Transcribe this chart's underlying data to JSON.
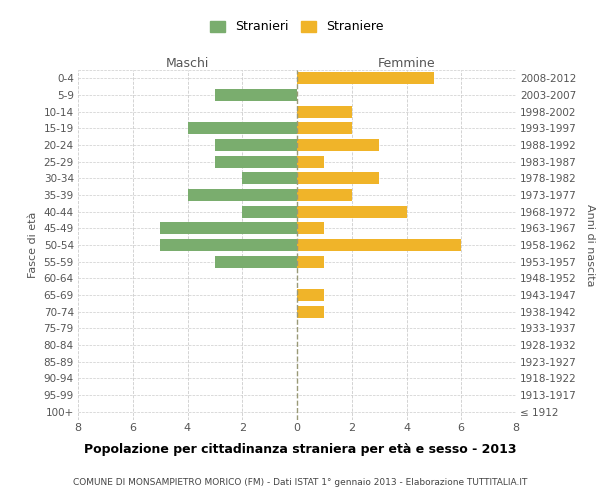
{
  "age_groups": [
    "100+",
    "95-99",
    "90-94",
    "85-89",
    "80-84",
    "75-79",
    "70-74",
    "65-69",
    "60-64",
    "55-59",
    "50-54",
    "45-49",
    "40-44",
    "35-39",
    "30-34",
    "25-29",
    "20-24",
    "15-19",
    "10-14",
    "5-9",
    "0-4"
  ],
  "birth_years": [
    "≤ 1912",
    "1913-1917",
    "1918-1922",
    "1923-1927",
    "1928-1932",
    "1933-1937",
    "1938-1942",
    "1943-1947",
    "1948-1952",
    "1953-1957",
    "1958-1962",
    "1963-1967",
    "1968-1972",
    "1973-1977",
    "1978-1982",
    "1983-1987",
    "1988-1992",
    "1993-1997",
    "1998-2002",
    "2003-2007",
    "2008-2012"
  ],
  "maschi": [
    0,
    0,
    0,
    0,
    0,
    0,
    0,
    0,
    0,
    3,
    5,
    5,
    2,
    4,
    2,
    3,
    3,
    4,
    0,
    3,
    0
  ],
  "femmine": [
    0,
    0,
    0,
    0,
    0,
    0,
    1,
    1,
    0,
    1,
    6,
    1,
    4,
    2,
    3,
    1,
    3,
    2,
    2,
    0,
    5
  ],
  "color_maschi": "#7aad6e",
  "color_femmine": "#f0b429",
  "title": "Popolazione per cittadinanza straniera per età e sesso - 2013",
  "subtitle": "COMUNE DI MONSAMPIETRO MORICO (FM) - Dati ISTAT 1° gennaio 2013 - Elaborazione TUTTITALIA.IT",
  "xlabel_left": "Maschi",
  "xlabel_right": "Femmine",
  "ylabel_left": "Fasce di età",
  "ylabel_right": "Anni di nascita",
  "legend_maschi": "Stranieri",
  "legend_femmine": "Straniere",
  "xlim": 8,
  "background_color": "#ffffff",
  "grid_color": "#cccccc",
  "dashed_line_color": "#999977"
}
